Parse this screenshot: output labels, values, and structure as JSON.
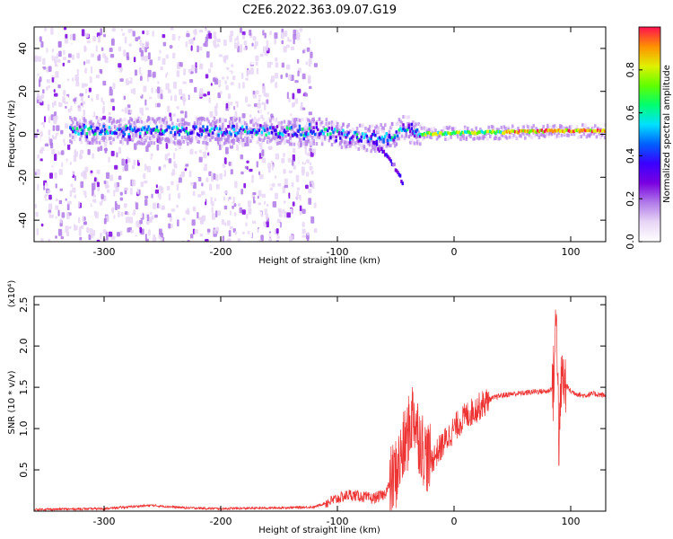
{
  "title": "C2E6.2022.363.09.07.G19",
  "chart_data": [
    {
      "type": "heatmap",
      "xlabel": "Height of straight line (km)",
      "ylabel": "Frequency (Hz)",
      "xlim": [
        -360,
        130
      ],
      "ylim": [
        -50,
        50
      ],
      "x_ticks": [
        -300,
        -200,
        -100,
        0,
        100
      ],
      "y_ticks": [
        -40,
        -20,
        0,
        20,
        40
      ],
      "colorbar": {
        "label": "Normalized spectral amplitude",
        "range": [
          0,
          1
        ],
        "ticks": [
          0.0,
          0.2,
          0.4,
          0.6,
          0.8
        ],
        "colors": [
          "#ffffff",
          "#e8d6f6",
          "#b07ae8",
          "#7a00e0",
          "#3a00ff",
          "#0060ff",
          "#00e0ff",
          "#00ff70",
          "#60ff00",
          "#e0f000",
          "#ff9000",
          "#ff1050"
        ]
      },
      "noise_region_x": [
        -360,
        -120
      ],
      "signal_track": [
        {
          "x": -330,
          "f": 2
        },
        {
          "x": -250,
          "f": 1.5
        },
        {
          "x": -150,
          "f": 1.5
        },
        {
          "x": -110,
          "f": 1
        },
        {
          "x": -90,
          "f": -1
        },
        {
          "x": -70,
          "f": -2
        },
        {
          "x": -55,
          "f": -1
        },
        {
          "x": -42,
          "f": 3
        },
        {
          "x": -30,
          "f": 0
        },
        {
          "x": 0,
          "f": 0.5
        },
        {
          "x": 50,
          "f": 1
        },
        {
          "x": 80,
          "f": 1.5
        },
        {
          "x": 130,
          "f": 1.5
        }
      ],
      "branch": [
        {
          "x": -70,
          "f": -4
        },
        {
          "x": -55,
          "f": -12
        },
        {
          "x": -45,
          "f": -22
        }
      ]
    },
    {
      "type": "line",
      "xlabel": "Height of straight line (km)",
      "ylabel": "SNR (10 * v/v)",
      "y_multiplier": "(x10⁴)",
      "xlim": [
        -360,
        130
      ],
      "ylim": [
        0,
        2.6
      ],
      "x_ticks": [
        -300,
        -200,
        -100,
        0,
        100
      ],
      "y_ticks": [
        0.5,
        1.0,
        1.5,
        2.0,
        2.5
      ],
      "color": "#ee3333",
      "series": [
        {
          "x": [
            -360,
            -300,
            -260,
            -230,
            -200,
            -150,
            -120,
            -110,
            -100,
            -90,
            -80,
            -70,
            -60,
            -50,
            -40,
            -35,
            -30,
            -25,
            -20,
            -10,
            0,
            10,
            20,
            30,
            40,
            50,
            60,
            70,
            80,
            85,
            88,
            90,
            92,
            100,
            110,
            120,
            130
          ],
          "y": [
            0.02,
            0.03,
            0.07,
            0.04,
            0.03,
            0.04,
            0.05,
            0.1,
            0.15,
            0.2,
            0.18,
            0.15,
            0.2,
            0.45,
            0.9,
            1.2,
            0.9,
            0.7,
            0.6,
            0.8,
            1.0,
            1.15,
            1.25,
            1.35,
            1.4,
            1.42,
            1.43,
            1.45,
            1.45,
            1.5,
            2.45,
            0.7,
            1.6,
            1.45,
            1.4,
            1.42,
            1.4
          ]
        }
      ]
    }
  ]
}
